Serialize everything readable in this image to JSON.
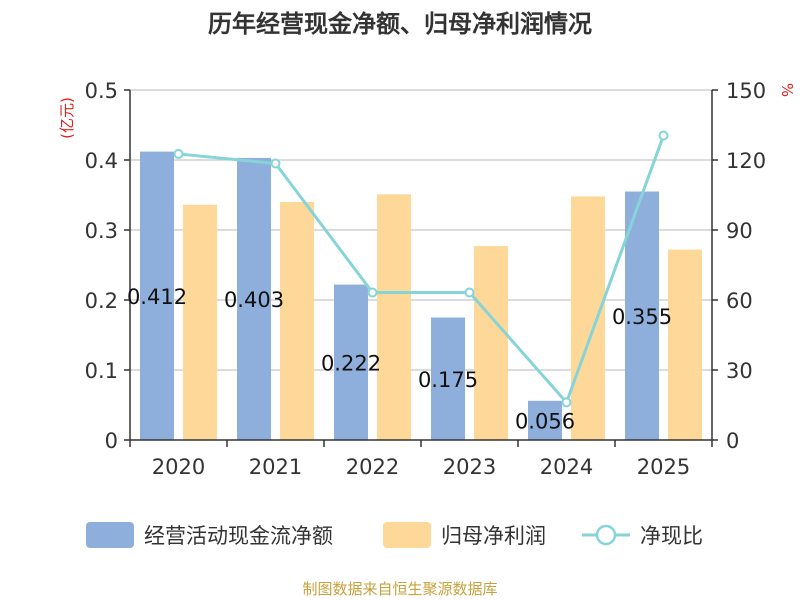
{
  "chart_data": {
    "type": "bar+line",
    "title": "历年经营现金净额、归母净利润情况",
    "categories": [
      "2020",
      "2021",
      "2022",
      "2023",
      "2024",
      "2025"
    ],
    "left_axis": {
      "label": "(亿元)",
      "ylim": [
        0,
        0.5
      ],
      "ticks": [
        "0",
        "0.1",
        "0.2",
        "0.3",
        "0.4",
        "0.5"
      ],
      "tick_values": [
        0,
        0.1,
        0.2,
        0.3,
        0.4,
        0.5
      ]
    },
    "right_axis": {
      "label": "%",
      "ylim": [
        0,
        150
      ],
      "ticks": [
        "0",
        "30",
        "60",
        "90",
        "120",
        "150"
      ],
      "tick_values": [
        0,
        30,
        60,
        90,
        120,
        150
      ]
    },
    "series": [
      {
        "name": "经营活动现金流净额",
        "type": "bar",
        "axis": "left",
        "color": "#8eaedc",
        "values": [
          0.412,
          0.403,
          0.222,
          0.175,
          0.056,
          0.355
        ],
        "labels": [
          "0.412",
          "0.403",
          "0.222",
          "0.175",
          "0.056",
          "0.355"
        ]
      },
      {
        "name": "归母净利润",
        "type": "bar",
        "axis": "left",
        "color": "#fdd898",
        "values": [
          0.336,
          0.34,
          0.351,
          0.277,
          0.348,
          0.272
        ]
      },
      {
        "name": "净现比",
        "type": "line",
        "axis": "right",
        "color": "#86d4d8",
        "values": [
          122.6,
          118.5,
          63.2,
          63.2,
          16.1,
          130.5
        ]
      }
    ],
    "grid": true,
    "legend_position": "bottom"
  },
  "source_note": "制图数据来自恒生聚源数据库",
  "colors": {
    "axis_label_red": "#e0201e",
    "source_gold": "#c9a13c",
    "text": "#333333",
    "grid": "#c8c8c8",
    "axis": "#333333"
  }
}
